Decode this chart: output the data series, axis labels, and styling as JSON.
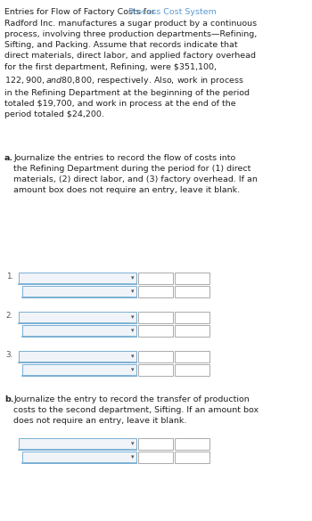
{
  "title_normal": "Entries for Flow of Factory Costs for ",
  "title_colored": "Process Cost System",
  "title_color": "#5b9bd5",
  "body_text": "Radford Inc. manufactures a sugar product by a continuous\nprocess, involving three production departments—Refining,\nSifting, and Packing. Assume that records indicate that\ndirect materials, direct labor, and applied factory overhead\nfor the first department, Refining, were $351,100,\n$122,900, and $80,800, respectively. Also, work in process\nin the Refining Department at the beginning of the period\ntotaled $19,700, and work in process at the end of the\nperiod totaled $24,200.",
  "part_a_label": "a.",
  "part_a_text": " Journalize the entries to record the flow of costs into\nthe Refining Department during the period for (1) direct\nmaterials, (2) direct labor, and (3) factory overhead. If an\namount box does not require an entry, leave it blank.",
  "part_b_label": "b.",
  "part_b_text": " Journalize the entry to record the transfer of production\ncosts to the second department, Sifting. If an amount box\ndoes not require an entry, leave it blank.",
  "bg_color": "#ffffff",
  "text_color": "#222222",
  "font_size": 6.8,
  "title_font_size": 6.8,
  "dropdown_border_color": "#7bafd4",
  "dropdown_fill": "#f0f4f8",
  "box_edge_color": "#aaaaaa",
  "box_fill": "#ffffff",
  "arrow_color": "#555555",
  "label_color": "#555555"
}
